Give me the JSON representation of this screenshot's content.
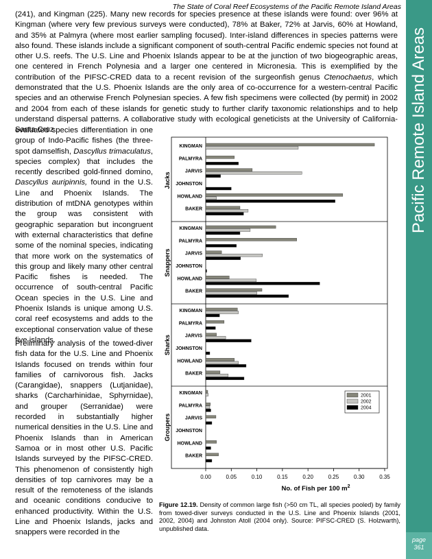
{
  "header": {
    "title": "The State of Coral Reef Ecosystems of the Pacific Remote Island Areas"
  },
  "sidebar": {
    "title": "Pacific Remote Island Areas",
    "page_word": "page",
    "page_number": "361"
  },
  "body": {
    "paragraph_1": [
      "(241), and Kingman (225).  Many new records for species presence at these islands were found: over 96% at Kingman (where very few previous surveys were conducted), 78% at Baker, 72% at Jarvis, 60% at Howland, and 35% at Palmyra (where most earlier sampling focused).  Inter-island differences in species patterns were also found.  These islands include a significant component of south-central Pacific endemic species not found at other U.S. reefs.  The U.S. Line and Phoenix Islands appear to be at the junction of two biogeographic areas, one centered in French Polynesia and a larger one centered in Micronesia.  This is exemplified by the contribution of the PIFSC-CRED data to a recent revision of the surgeonfish genus ",
      "Ctenochaetus",
      ", which demonstrated that the U.S. Phoenix Islands are the only area of co-occurrence for a western-central Pacific species and an otherwise French Polynesian species.  A few fish specimens were collected (by permit) in 2002 and 2004 from each of these islands for genetic study to further clarify taxonomic relationships and to help understand dispersal patterns.  A collaborative study with ecological geneticists at the University of California-Santa Cruz"
    ],
    "paragraph_1_continued": [
      "evaluated species differentiation in one group of Indo-Pacific fishes (the three-spot damselfish, ",
      "Dascyllus trimaculatus",
      ", species complex) that includes the recently described gold-finned domino, ",
      "Dascyllus auripinnis,",
      " found in the U.S. Line and Phoenix Islands.  The distribution of mtDNA genotypes within the group was consistent with geographic separation but incongruent with external characteristics that define some of the nominal species, indicating that more work on the systematics of this group and likely many other central Pacific fishes is needed.  The occurrence of south-central Pacific Ocean species in the U.S. Line and Phoenix Islands is unique among U.S. coral reef ecosystems and adds to the exceptional conservation value of these five islands."
    ],
    "paragraph_2": "Preliminary analysis of the towed-diver fish data for the U.S. Line and Phoenix Islands focused on trends within four families of carnivorous fish. Jacks (Carangidae), snappers (Lutjanidae), sharks (Carcharhinidae, Sphyrnidae), and grouper (Serranidae) were recorded in substantially higher numerical densities in the U.S. Line and Phoenix Islands than in American Samoa or in most other U.S. Pacific Islands surveyed by the PIFSC-CRED.  This phenomenon of consistently high densities of top carnivores may be a result of the remoteness of the islands and oceanic conditions conducive to enhanced productivity.  Within the U.S. Line and Phoenix Islands, jacks and snappers were recorded in the"
  },
  "figure": {
    "label": "Figure 12.19.",
    "caption": "Density of common large fish (>50 cm TL, all species pooled) by family from towed-diver surveys conducted in the U.S. Line and Phoenix Islands (2001, 2002, 2004) and Johnston Atoll (2004 only).  Source: PIFSC-CRED (S. Holzwarth), unpublished data."
  },
  "chart_data": {
    "type": "bar",
    "orientation": "horizontal",
    "x_label": "No. of Fish per 100 m",
    "x_label_superscript": "2",
    "categories": [
      "KINGMAN",
      "PALMYRA",
      "JARVIS",
      "JOHNSTON",
      "HOWLAND",
      "BAKER"
    ],
    "series": [
      {
        "name": "2001",
        "color": "#86867a"
      },
      {
        "name": "2002",
        "color": "#c6c6c2"
      },
      {
        "name": "2004",
        "color": "#000000"
      }
    ],
    "panels": [
      {
        "label": "Jacks",
        "values": [
          [
            0.33,
            0.056,
            0.091,
            0,
            0.268,
            0.067
          ],
          [
            0.181,
            0,
            0.188,
            0,
            0.021,
            0.083
          ],
          [
            0,
            0.064,
            0.029,
            0.05,
            0.253,
            0.074
          ]
        ]
      },
      {
        "label": "Snappers",
        "values": [
          [
            0.137,
            0.178,
            0.031,
            0,
            0.046,
            0.11
          ],
          [
            0.087,
            0,
            0.111,
            0,
            0.099,
            0.1
          ],
          [
            0.067,
            0.06,
            0.068,
            0.002,
            0.223,
            0.162
          ]
        ]
      },
      {
        "label": "Sharks",
        "values": [
          [
            0.062,
            0.036,
            0.021,
            0,
            0.056,
            0.028
          ],
          [
            0.064,
            0,
            0.039,
            0,
            0.064,
            0.044
          ],
          [
            0.027,
            0.019,
            0.089,
            0.008,
            0.079,
            0.075
          ]
        ]
      },
      {
        "label": "Groupers",
        "values": [
          [
            0.004,
            0.009,
            0.02,
            0,
            0.021,
            0.025
          ],
          [
            0.005,
            0.008,
            0,
            0,
            0,
            0
          ],
          [
            0,
            0.01,
            0.012,
            0,
            0.01,
            0.012
          ]
        ]
      }
    ],
    "xlim": [
      0,
      0.35
    ],
    "xticks": [
      {
        "value": 0,
        "label": "0.00"
      },
      0.05,
      {
        "value": 0.1,
        "label": "0.10"
      },
      0.15,
      {
        "value": 0.2,
        "label": "0.20"
      },
      0.25,
      {
        "value": 0.3,
        "label": "0.30"
      },
      0.35
    ],
    "legend": "upper right",
    "grid": false
  }
}
